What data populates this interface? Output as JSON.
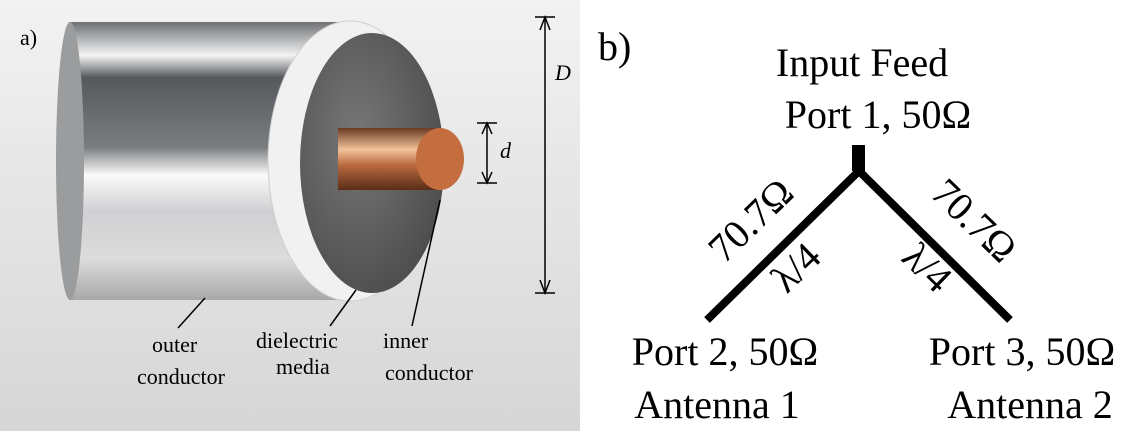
{
  "panel_a": {
    "label": "a)",
    "dim_outer": "D",
    "dim_inner": "d",
    "parts": [
      {
        "lines": [
          "outer",
          "conductor"
        ]
      },
      {
        "lines": [
          "dielectric",
          "media"
        ]
      },
      {
        "lines": [
          "inner",
          "conductor"
        ]
      }
    ]
  },
  "panel_b": {
    "label": "b)",
    "input": [
      "Input Feed",
      "Port 1, 50Ω"
    ],
    "left_branch": {
      "impedance": "70.7Ω",
      "length": "λ/4"
    },
    "right_branch": {
      "impedance": "70.7Ω",
      "length": "λ/4"
    },
    "port2": [
      "Port 2, 50Ω",
      "Antenna 1"
    ],
    "port3": [
      "Port 3, 50Ω",
      "Antenna 2"
    ]
  }
}
